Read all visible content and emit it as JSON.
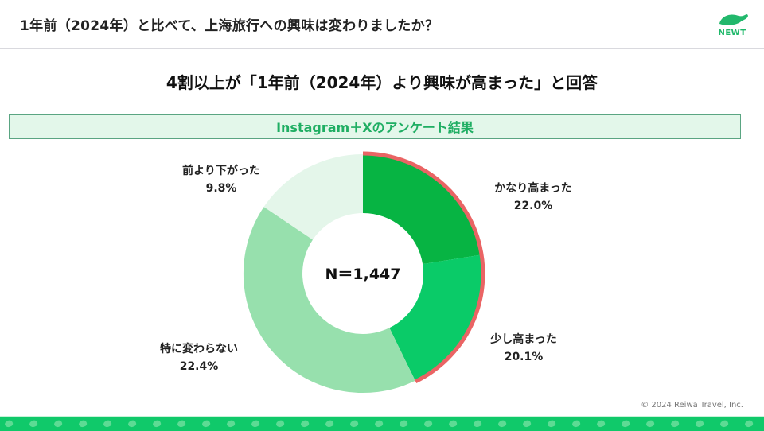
{
  "header": {
    "title": "1年前（2024年）と比べて、上海旅行への興味は変わりましたか？",
    "logo": {
      "icon": "newt-turtle-icon",
      "text": "NEWT",
      "color": "#1fb86a"
    }
  },
  "headline": "4割以上が「1年前（2024年）より興味が高まった」と回答",
  "banner": {
    "text": "Instagram＋Xのアンケート結果"
  },
  "chart_data": {
    "type": "pie",
    "subtype": "donut",
    "title": "Instagram＋Xのアンケート結果",
    "center_label": "N＝1,447",
    "n": 1447,
    "categories": [
      "かなり高まった",
      "少し高まった",
      "特に変わらない",
      "前より下がった"
    ],
    "values": [
      22.0,
      20.1,
      22.4,
      9.8
    ],
    "unit": "%",
    "colors": [
      "#07b443",
      "#0acb68",
      "#97e0ad",
      "#e4f6ea"
    ],
    "highlight": {
      "segments": [
        "かなり高まった",
        "少し高まった"
      ],
      "color": "#ea6464",
      "note": "4割以上が高まった"
    },
    "legend_position": "inline-labels"
  },
  "labels": [
    {
      "name": "かなり高まった",
      "value": "22.0%"
    },
    {
      "name": "少し高まった",
      "value": "20.1%"
    },
    {
      "name": "特に変わらない",
      "value": "22.4%"
    },
    {
      "name": "前より下がった",
      "value": "9.8%"
    }
  ],
  "footer": {
    "copyright": "© 2024 Reiwa Travel, Inc.",
    "bar_color": "#10c96a"
  }
}
